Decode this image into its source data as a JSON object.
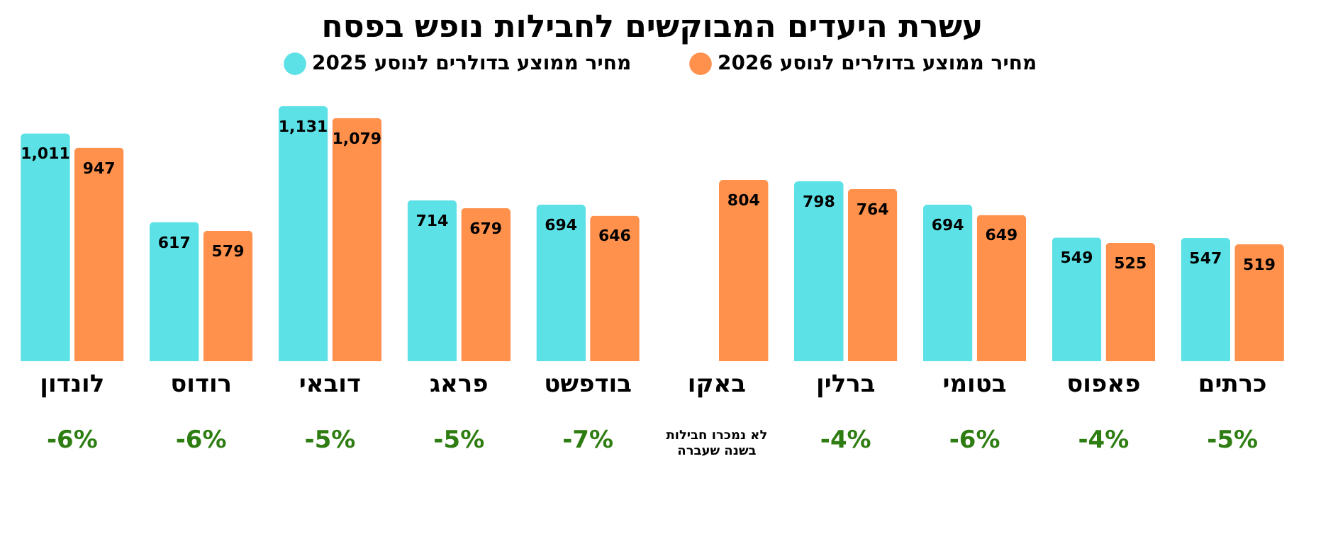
{
  "chart_data": {
    "type": "bar",
    "title": "עשרת היעדים המבוקשים לחבילות נופש בפסח",
    "categories": [
      "לונדון",
      "רודוס",
      "דובאי",
      "פראג",
      "בודפשט",
      "באקו",
      "ברלין",
      "בטומי",
      "פאפוס",
      "כרתים"
    ],
    "series": [
      {
        "name": "מחיר ממוצע בדולרים לנוסע 2025",
        "color": "#5ce1e6",
        "values": [
          1011,
          617,
          1131,
          714,
          694,
          null,
          798,
          694,
          549,
          547
        ],
        "value_labels": [
          "1,011",
          "617",
          "1,131",
          "714",
          "694",
          null,
          "798",
          "694",
          "549",
          "547"
        ]
      },
      {
        "name": "מחיר ממוצע בדולרים לנוסע 2026",
        "color": "#ff914d",
        "values": [
          947,
          579,
          1079,
          679,
          646,
          804,
          764,
          649,
          525,
          519
        ],
        "value_labels": [
          "947",
          "579",
          "1,079",
          "679",
          "646",
          "804",
          "764",
          "649",
          "525",
          "519"
        ]
      }
    ],
    "legend": "top",
    "annotations": [
      "-6%",
      "-6%",
      "-5%",
      "-5%",
      "-7%",
      "לא נמכרו חבילות\nבשנה שעברה",
      "-4%",
      "-6%",
      "-4%",
      "-5%"
    ]
  }
}
